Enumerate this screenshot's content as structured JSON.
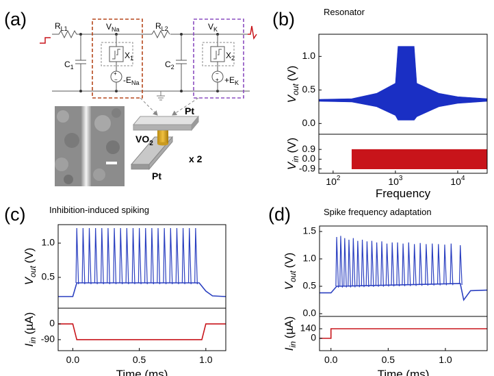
{
  "diagram": {
    "panel": "(a)",
    "rl1": {
      "main": "R",
      "sub": "L1"
    },
    "vna": {
      "main": "V",
      "sub": "Na"
    },
    "rl2": {
      "main": "R",
      "sub": "L2"
    },
    "vk": {
      "main": "V",
      "sub": "K"
    },
    "c1": {
      "main": "C",
      "sub": "1"
    },
    "c2": {
      "main": "C",
      "sub": "2"
    },
    "x1": {
      "main": "X",
      "sub": "1"
    },
    "x2": {
      "main": "X",
      "sub": "2"
    },
    "ena": {
      "main": "-E",
      "sub": "Na"
    },
    "ek": {
      "main": "+E",
      "sub": "K"
    },
    "device": {
      "vo2": {
        "main": "VO",
        "sub": "2"
      },
      "pt_top": "Pt",
      "pt_bottom": "Pt",
      "count": "x 2"
    }
  },
  "chart_data": [
    {
      "type": "band",
      "panel": "(b)",
      "title": "Resonator",
      "xlabel": "Frequency",
      "xlog": true,
      "xlim": [
        59,
        29700
      ],
      "xticks": [
        {
          "value": 100,
          "label": "10",
          "exponent": "2"
        },
        {
          "value": 1000,
          "label": "10",
          "exponent": "3"
        },
        {
          "value": 10000,
          "label": "10",
          "exponent": "4"
        }
      ],
      "axes": [
        {
          "ylabel": {
            "main": "V",
            "sub": "out",
            "unit": "(V)"
          },
          "ylim": [
            -0.16,
            1.33
          ],
          "yticks": [
            {
              "value": 0.0,
              "label": "0.0"
            },
            0.5,
            {
              "value": 1.0,
              "label": "1.0"
            }
          ],
          "series": [
            {
              "color": "#1a2fc4",
              "x": [
                59,
                200,
                500,
                1000,
                1100,
                2000,
                2200,
                5000,
                10000,
                29700
              ],
              "upper": [
                0.36,
                0.37,
                0.45,
                0.6,
                1.15,
                1.15,
                0.6,
                0.45,
                0.4,
                0.37
              ],
              "lower": [
                0.33,
                0.32,
                0.25,
                0.12,
                0.05,
                0.05,
                0.1,
                0.25,
                0.3,
                0.33
              ]
            }
          ]
        },
        {
          "ylabel": {
            "main": "V",
            "sub": "in",
            "unit": "(V)"
          },
          "ylim": [
            -1.3,
            2.3
          ],
          "yticks": [
            0.9,
            {
              "value": 0.0,
              "label": "0.0"
            },
            -0.9
          ],
          "series": [
            {
              "color": "#c8141a",
              "x": [
                200,
                29700
              ],
              "upper": [
                0.9,
                0.9
              ],
              "lower": [
                -0.9,
                -0.9
              ]
            }
          ]
        }
      ]
    },
    {
      "type": "line",
      "panel": "(c)",
      "title": "Inhibition-induced spiking",
      "xlabel": "Time (ms)",
      "xlim": [
        -0.11,
        1.15
      ],
      "xticks": [
        {
          "value": 0.0,
          "label": "0.0"
        },
        0.5,
        {
          "value": 1.0,
          "label": "1.0"
        }
      ],
      "axes": [
        {
          "ylabel": {
            "main": "V",
            "sub": "out",
            "unit": "(V)"
          },
          "ylim": [
            0.05,
            1.27
          ],
          "yticks": [
            0.5,
            {
              "value": 1.0,
              "label": "1.0"
            }
          ],
          "series": [
            {
              "color": "#2a3fc0",
              "x": [
                -0.11,
                0.0,
                0.03,
                0.95,
                1.0,
                1.05,
                1.15
              ],
              "values": [
                0.22,
                0.22,
                0.42,
                0.42,
                0.3,
                0.23,
                0.22
              ],
              "spikes": {
                "x": [
                  0.03,
                  0.077,
                  0.124,
                  0.171,
                  0.218,
                  0.265,
                  0.312,
                  0.359,
                  0.406,
                  0.453,
                  0.5,
                  0.547,
                  0.594,
                  0.641,
                  0.688,
                  0.735,
                  0.782,
                  0.829,
                  0.876,
                  0.923
                ],
                "values": [
                  1.22,
                  1.22,
                  1.22,
                  1.22,
                  1.22,
                  1.22,
                  1.22,
                  1.22,
                  1.22,
                  1.22,
                  1.22,
                  1.22,
                  1.22,
                  1.22,
                  1.22,
                  1.22,
                  1.22,
                  1.22,
                  1.22,
                  1.22
                ]
              }
            }
          ]
        },
        {
          "ylabel": {
            "main": "I",
            "sub": "in",
            "unit": "(µA)"
          },
          "ylim": [
            -153,
            90
          ],
          "yticks": [
            0,
            -90
          ],
          "series": [
            {
              "color": "#c8141a",
              "x": [
                -0.11,
                0.0,
                0.03,
                0.97,
                1.0,
                1.15
              ],
              "values": [
                0,
                0,
                -90,
                -90,
                0,
                0
              ]
            }
          ]
        }
      ]
    },
    {
      "type": "line",
      "panel": "(d)",
      "title": "Spike frequency adaptation",
      "xlabel": "Time (ms)",
      "xlim": [
        -0.1,
        1.365
      ],
      "xticks": [
        {
          "value": 0.0,
          "label": "0.0"
        },
        0.5,
        {
          "value": 1.0,
          "label": "1.0"
        }
      ],
      "axes": [
        {
          "ylabel": {
            "main": "V",
            "sub": "out",
            "unit": "(V)"
          },
          "ylim": [
            -0.05,
            1.6
          ],
          "yticks": [
            {
              "value": 0.0,
              "label": "0.0"
            },
            0.5,
            {
              "value": 1.0,
              "label": "1.0"
            },
            1.5
          ],
          "series": [
            {
              "color": "#2a3fc0",
              "x": [
                -0.1,
                0.0,
                0.05,
                1.13,
                1.16,
                1.22,
                1.365
              ],
              "values": [
                0.38,
                0.38,
                0.5,
                0.55,
                0.25,
                0.42,
                0.43
              ],
              "spikes": {
                "x": [
                  0.05,
                  0.085,
                  0.12,
                  0.157,
                  0.195,
                  0.234,
                  0.274,
                  0.315,
                  0.357,
                  0.4,
                  0.444,
                  0.489,
                  0.535,
                  0.582,
                  0.63,
                  0.679,
                  0.729,
                  0.78,
                  0.832,
                  0.885,
                  0.939,
                  0.994,
                  1.05,
                  1.13
                ],
                "values": [
                  1.4,
                  1.42,
                  1.38,
                  1.35,
                  1.38,
                  1.33,
                  1.35,
                  1.32,
                  1.33,
                  1.3,
                  1.32,
                  1.28,
                  1.3,
                  1.3,
                  1.28,
                  1.3,
                  1.27,
                  1.29,
                  1.27,
                  1.28,
                  1.27,
                  1.26,
                  1.28,
                  1.25
                ]
              }
            }
          ]
        },
        {
          "ylabel": {
            "main": "I",
            "sub": "in",
            "unit": "(µA)"
          },
          "ylim": [
            -180,
            320
          ],
          "yticks": [
            140,
            0
          ],
          "series": [
            {
              "color": "#c8141a",
              "x": [
                -0.1,
                0.0,
                0.0,
                1.365
              ],
              "values": [
                0,
                0,
                140,
                140
              ]
            }
          ]
        }
      ]
    }
  ]
}
